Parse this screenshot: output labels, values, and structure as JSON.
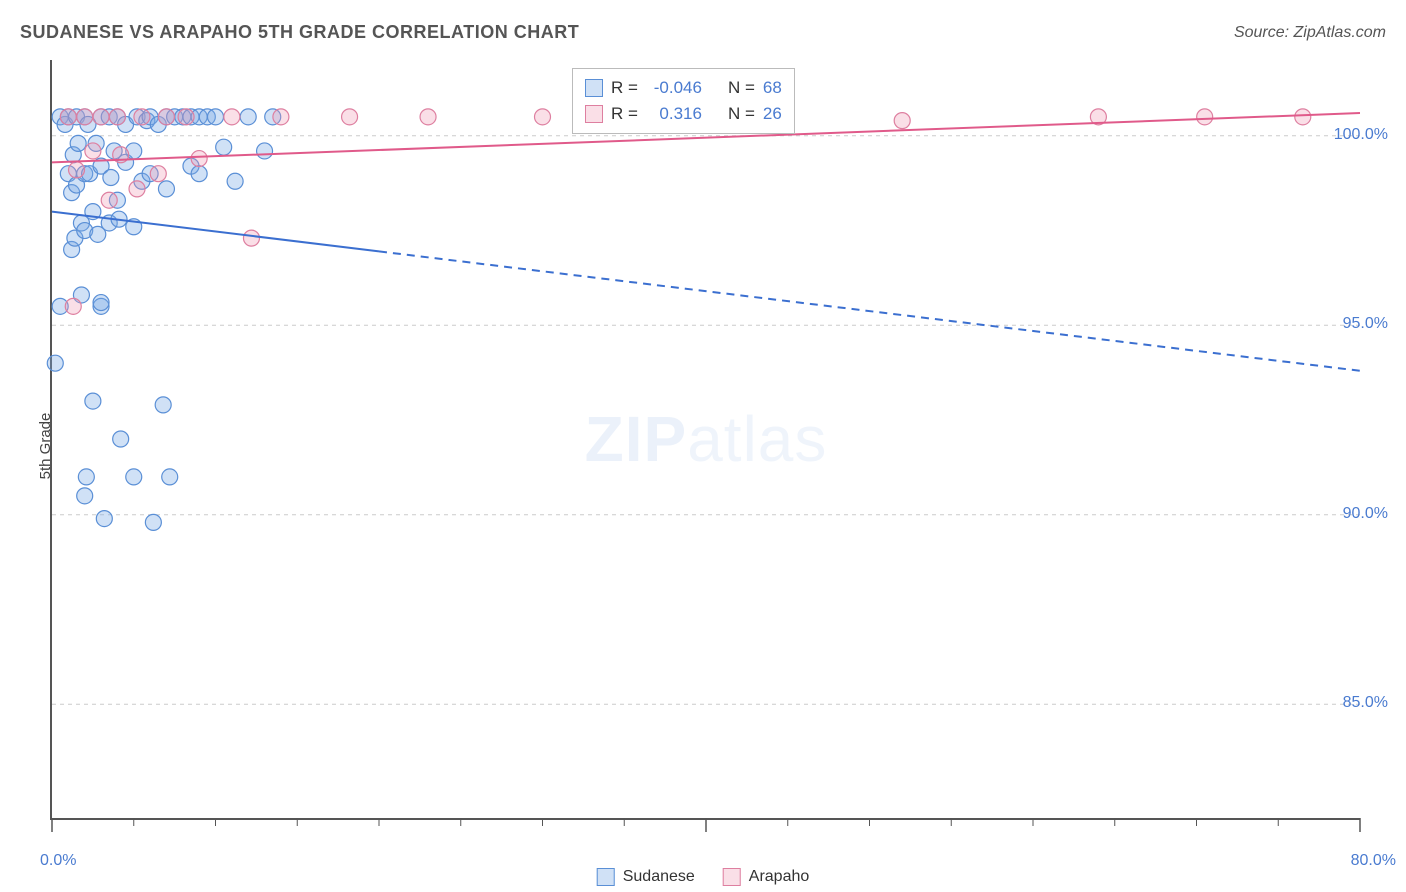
{
  "title": "SUDANESE VS ARAPAHO 5TH GRADE CORRELATION CHART",
  "source": "Source: ZipAtlas.com",
  "ylabel": "5th Grade",
  "watermark_bold": "ZIP",
  "watermark_light": "atlas",
  "chart": {
    "type": "scatter",
    "xlim": [
      0,
      80
    ],
    "ylim": [
      82,
      102
    ],
    "yticks": [
      85,
      90,
      95,
      100
    ],
    "ytick_labels": [
      "85.0%",
      "90.0%",
      "95.0%",
      "100.0%"
    ],
    "xtick_minor": [
      0,
      5,
      10,
      15,
      20,
      25,
      30,
      35,
      40,
      45,
      50,
      55,
      60,
      65,
      70,
      75,
      80
    ],
    "xtick_major": [
      0,
      40,
      80
    ],
    "x_left_label": "0.0%",
    "x_right_label": "80.0%",
    "background_color": "#ffffff",
    "grid_color": "#cccccc",
    "series": [
      {
        "name": "Sudanese",
        "fill": "rgba(120,170,230,0.35)",
        "stroke": "#5a8fd6",
        "marker_r": 8,
        "R": "-0.046",
        "N": "68",
        "trend": {
          "y_at_x0": 98.0,
          "y_at_x80": 93.8,
          "solid_until_x": 20,
          "color": "#3b6fd0",
          "width": 2
        },
        "points": [
          [
            0.2,
            94.0
          ],
          [
            0.5,
            95.5
          ],
          [
            0.5,
            100.5
          ],
          [
            0.8,
            100.3
          ],
          [
            1.0,
            100.5
          ],
          [
            1.0,
            99.0
          ],
          [
            1.2,
            97.0
          ],
          [
            1.2,
            98.5
          ],
          [
            1.3,
            99.5
          ],
          [
            1.4,
            97.3
          ],
          [
            1.5,
            100.5
          ],
          [
            1.5,
            98.7
          ],
          [
            1.6,
            99.8
          ],
          [
            1.8,
            95.8
          ],
          [
            1.8,
            97.7
          ],
          [
            2.0,
            100.5
          ],
          [
            2.0,
            99.0
          ],
          [
            2.0,
            97.5
          ],
          [
            2.0,
            90.5
          ],
          [
            2.1,
            91.0
          ],
          [
            2.2,
            100.3
          ],
          [
            2.3,
            99.0
          ],
          [
            2.5,
            93.0
          ],
          [
            2.5,
            98.0
          ],
          [
            2.7,
            99.8
          ],
          [
            2.8,
            97.4
          ],
          [
            3.0,
            100.5
          ],
          [
            3.0,
            99.2
          ],
          [
            3.0,
            95.5
          ],
          [
            3.0,
            95.6
          ],
          [
            3.2,
            89.9
          ],
          [
            3.5,
            100.5
          ],
          [
            3.5,
            97.7
          ],
          [
            3.6,
            98.9
          ],
          [
            3.8,
            99.6
          ],
          [
            4.0,
            100.5
          ],
          [
            4.0,
            98.3
          ],
          [
            4.1,
            97.8
          ],
          [
            4.2,
            92.0
          ],
          [
            4.5,
            99.3
          ],
          [
            4.5,
            100.3
          ],
          [
            5.0,
            99.6
          ],
          [
            5.0,
            97.6
          ],
          [
            5.0,
            91.0
          ],
          [
            5.2,
            100.5
          ],
          [
            5.5,
            98.8
          ],
          [
            5.8,
            100.4
          ],
          [
            6.0,
            100.5
          ],
          [
            6.0,
            99.0
          ],
          [
            6.2,
            89.8
          ],
          [
            6.5,
            100.3
          ],
          [
            6.8,
            92.9
          ],
          [
            7.0,
            100.5
          ],
          [
            7.0,
            98.6
          ],
          [
            7.2,
            91.0
          ],
          [
            7.5,
            100.5
          ],
          [
            8.0,
            100.5
          ],
          [
            8.5,
            99.2
          ],
          [
            8.5,
            100.5
          ],
          [
            9.0,
            99.0
          ],
          [
            9.0,
            100.5
          ],
          [
            9.5,
            100.5
          ],
          [
            10.0,
            100.5
          ],
          [
            10.5,
            99.7
          ],
          [
            11.2,
            98.8
          ],
          [
            12.0,
            100.5
          ],
          [
            13.0,
            99.6
          ],
          [
            13.5,
            100.5
          ]
        ]
      },
      {
        "name": "Arapaho",
        "fill": "rgba(240,150,175,0.30)",
        "stroke": "#de7fa0",
        "marker_r": 8,
        "R": "0.316",
        "N": "26",
        "trend": {
          "y_at_x0": 99.3,
          "y_at_x80": 100.6,
          "solid_until_x": 80,
          "color": "#e05a8a",
          "width": 2
        },
        "points": [
          [
            1.0,
            100.5
          ],
          [
            1.3,
            95.5
          ],
          [
            1.5,
            99.1
          ],
          [
            2.0,
            100.5
          ],
          [
            2.5,
            99.6
          ],
          [
            3.0,
            100.5
          ],
          [
            3.5,
            98.3
          ],
          [
            4.0,
            100.5
          ],
          [
            4.2,
            99.5
          ],
          [
            5.2,
            98.6
          ],
          [
            5.5,
            100.5
          ],
          [
            6.5,
            99.0
          ],
          [
            7.0,
            100.5
          ],
          [
            8.2,
            100.5
          ],
          [
            9.0,
            99.4
          ],
          [
            11.0,
            100.5
          ],
          [
            12.2,
            97.3
          ],
          [
            14.0,
            100.5
          ],
          [
            18.2,
            100.5
          ],
          [
            23.0,
            100.5
          ],
          [
            30.0,
            100.5
          ],
          [
            42.5,
            100.5
          ],
          [
            52.0,
            100.4
          ],
          [
            64.0,
            100.5
          ],
          [
            70.5,
            100.5
          ],
          [
            76.5,
            100.5
          ]
        ]
      }
    ]
  },
  "legend": {
    "series1_label": "Sudanese",
    "series2_label": "Arapaho"
  },
  "stats_box": {
    "R_label": "R =",
    "N_label": "N ="
  }
}
